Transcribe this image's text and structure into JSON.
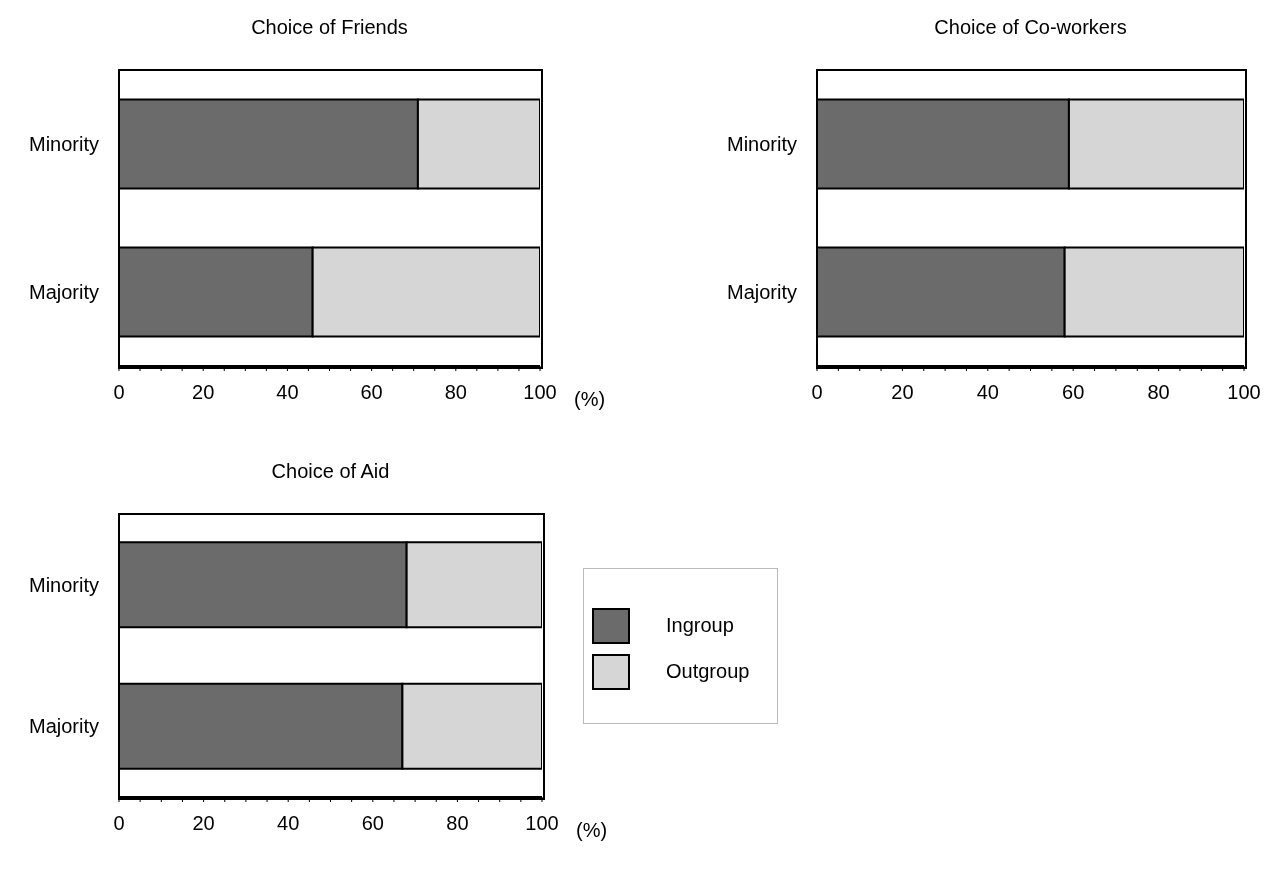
{
  "chart_data": [
    {
      "type": "bar",
      "orientation": "horizontal",
      "stacked": true,
      "title": "Choice of Friends",
      "xlabel": "(%)",
      "categories": [
        "Minority",
        "Majority"
      ],
      "series": [
        {
          "color": "#6b6b6b",
          "values": [
            71,
            46
          ]
        },
        {
          "color": "#d6d6d6",
          "values": [
            29,
            54
          ]
        }
      ],
      "xlim": [
        0,
        100
      ],
      "xticks": [
        0,
        {
          "value": 5,
          "label": null
        },
        {
          "value": 10,
          "label": null
        },
        {
          "value": 15,
          "label": null
        },
        20,
        {
          "value": 25,
          "label": null
        },
        {
          "value": 30,
          "label": null
        },
        {
          "value": 35,
          "label": null
        },
        40,
        {
          "value": 45,
          "label": null
        },
        {
          "value": 50,
          "label": null
        },
        {
          "value": 55,
          "label": null
        },
        60,
        {
          "value": 65,
          "label": null
        },
        {
          "value": 70,
          "label": null
        },
        {
          "value": 75,
          "label": null
        },
        80,
        {
          "value": 85,
          "label": null
        },
        {
          "value": 90,
          "label": null
        },
        {
          "value": 95,
          "label": null
        },
        100
      ]
    },
    {
      "type": "bar",
      "orientation": "horizontal",
      "stacked": true,
      "title": "Choice of Co-workers",
      "categories": [
        "Minority",
        "Majority"
      ],
      "series": [
        {
          "color": "#6b6b6b",
          "values": [
            59,
            58
          ]
        },
        {
          "color": "#d6d6d6",
          "values": [
            41,
            42
          ]
        }
      ],
      "xlim": [
        0,
        100
      ],
      "xticks": [
        0,
        {
          "value": 5,
          "label": null
        },
        {
          "value": 10,
          "label": null
        },
        {
          "value": 15,
          "label": null
        },
        20,
        {
          "value": 25,
          "label": null
        },
        {
          "value": 30,
          "label": null
        },
        {
          "value": 35,
          "label": null
        },
        40,
        {
          "value": 45,
          "label": null
        },
        {
          "value": 50,
          "label": null
        },
        {
          "value": 55,
          "label": null
        },
        60,
        {
          "value": 65,
          "label": null
        },
        {
          "value": 70,
          "label": null
        },
        {
          "value": 75,
          "label": null
        },
        80,
        {
          "value": 85,
          "label": null
        },
        {
          "value": 90,
          "label": null
        },
        {
          "value": 95,
          "label": null
        },
        100
      ]
    },
    {
      "type": "bar",
      "orientation": "horizontal",
      "stacked": true,
      "title": "Choice of Aid",
      "xlabel": "(%)",
      "categories": [
        "Minority",
        "Majority"
      ],
      "series": [
        {
          "name": "Ingroup",
          "color": "#6b6b6b",
          "values": [
            68,
            67
          ]
        },
        {
          "name": "Outgroup",
          "color": "#d6d6d6",
          "values": [
            32,
            33
          ]
        }
      ],
      "xlim": [
        0,
        100
      ],
      "xticks": [
        0,
        {
          "value": 5,
          "label": null
        },
        {
          "value": 10,
          "label": null
        },
        {
          "value": 15,
          "label": null
        },
        20,
        {
          "value": 25,
          "label": null
        },
        {
          "value": 30,
          "label": null
        },
        {
          "value": 35,
          "label": null
        },
        40,
        {
          "value": 45,
          "label": null
        },
        {
          "value": 50,
          "label": null
        },
        {
          "value": 55,
          "label": null
        },
        60,
        {
          "value": 65,
          "label": null
        },
        {
          "value": 70,
          "label": null
        },
        {
          "value": 75,
          "label": null
        },
        80,
        {
          "value": 85,
          "label": null
        },
        {
          "value": 90,
          "label": null
        },
        {
          "value": 95,
          "label": null
        },
        100
      ],
      "legend": "right"
    }
  ]
}
